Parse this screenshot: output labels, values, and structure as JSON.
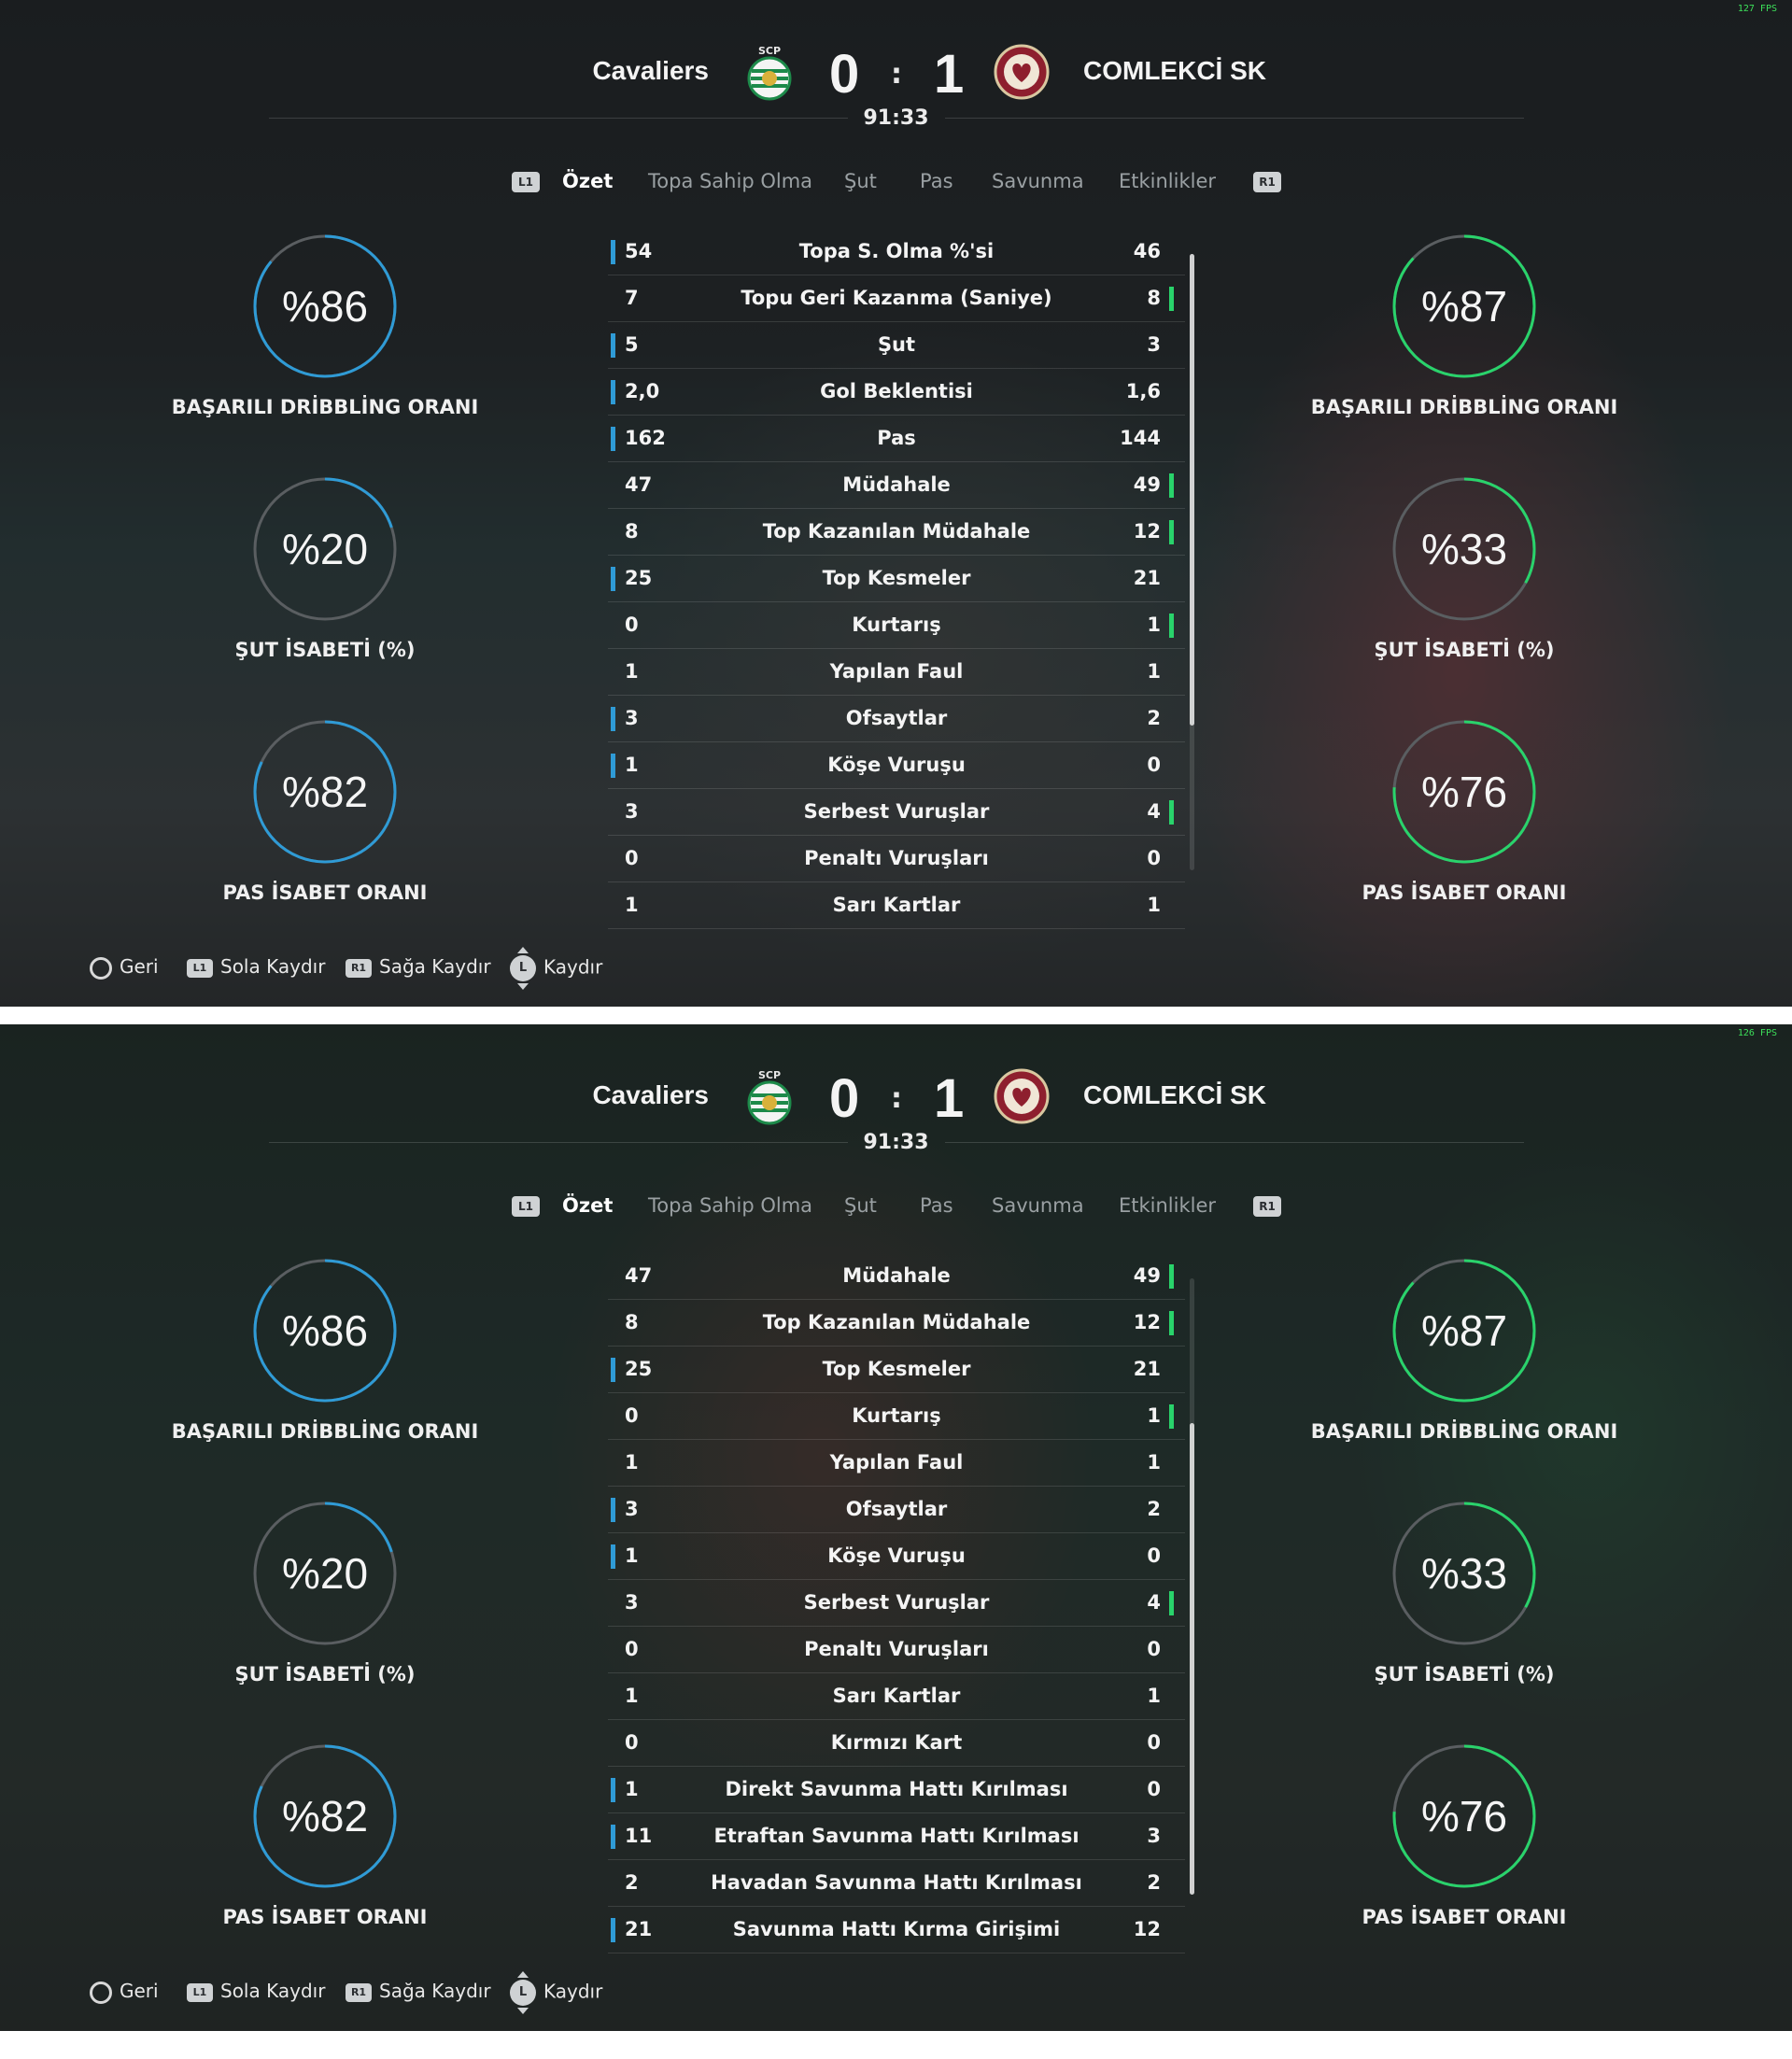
{
  "screens": [
    {
      "fps": "127 FPS",
      "home_team": "Cavaliers",
      "away_team": "COMLEKCİ SK",
      "home_score": "0",
      "away_score": "1",
      "separator": ":",
      "clock": "91:33",
      "tabs": [
        "Özet",
        "Topa Sahip Olma",
        "Şut",
        "Pas",
        "Savunma",
        "Etkinlikler"
      ],
      "active_tab": 0,
      "tab_left_button": "L1",
      "tab_right_button": "R1",
      "home_rings": [
        {
          "value": "%86",
          "label": "BAŞARILI DRİBBLİNG ORANI",
          "fraction": 0.86
        },
        {
          "value": "%20",
          "label": "ŞUT İSABETİ (%)",
          "fraction": 0.2
        },
        {
          "value": "%82",
          "label": "PAS İSABET ORANI",
          "fraction": 0.82
        }
      ],
      "away_rings": [
        {
          "value": "%87",
          "label": "BAŞARILI DRİBBLİNG ORANI",
          "fraction": 0.87
        },
        {
          "value": "%33",
          "label": "ŞUT İSABETİ (%)",
          "fraction": 0.33
        },
        {
          "value": "%76",
          "label": "PAS İSABET ORANI",
          "fraction": 0.76
        }
      ],
      "stats": [
        {
          "home": "54",
          "label": "Topa S. Olma %'si",
          "away": "46",
          "leader": "home"
        },
        {
          "home": "7",
          "label": "Topu Geri Kazanma (Saniye)",
          "away": "8",
          "leader": "away"
        },
        {
          "home": "5",
          "label": "Şut",
          "away": "3",
          "leader": "home"
        },
        {
          "home": "2,0",
          "label": "Gol Beklentisi",
          "away": "1,6",
          "leader": "home"
        },
        {
          "home": "162",
          "label": "Pas",
          "away": "144",
          "leader": "home"
        },
        {
          "home": "47",
          "label": "Müdahale",
          "away": "49",
          "leader": "away"
        },
        {
          "home": "8",
          "label": "Top Kazanılan Müdahale",
          "away": "12",
          "leader": "away"
        },
        {
          "home": "25",
          "label": "Top Kesmeler",
          "away": "21",
          "leader": "home"
        },
        {
          "home": "0",
          "label": "Kurtarış",
          "away": "1",
          "leader": "away"
        },
        {
          "home": "1",
          "label": "Yapılan Faul",
          "away": "1",
          "leader": "none"
        },
        {
          "home": "3",
          "label": "Ofsaytlar",
          "away": "2",
          "leader": "home"
        },
        {
          "home": "1",
          "label": "Köşe Vuruşu",
          "away": "0",
          "leader": "home"
        },
        {
          "home": "3",
          "label": "Serbest Vuruşlar",
          "away": "4",
          "leader": "away"
        },
        {
          "home": "0",
          "label": "Penaltı Vuruşları",
          "away": "0",
          "leader": "none"
        },
        {
          "home": "1",
          "label": "Sarı Kartlar",
          "away": "1",
          "leader": "none"
        }
      ],
      "scroll_position": 0.0,
      "footer": [
        {
          "icon": "circle-button-icon",
          "glyph": "",
          "label": "Geri"
        },
        {
          "icon": "l1-button-icon",
          "glyph": "L1",
          "label": "Sola Kaydır"
        },
        {
          "icon": "r1-button-icon",
          "glyph": "R1",
          "label": "Sağa Kaydır"
        },
        {
          "icon": "left-stick-icon",
          "glyph": "L",
          "label": "Kaydır"
        }
      ]
    },
    {
      "fps": "126 FPS",
      "home_team": "Cavaliers",
      "away_team": "COMLEKCİ SK",
      "home_score": "0",
      "away_score": "1",
      "separator": ":",
      "clock": "91:33",
      "tabs": [
        "Özet",
        "Topa Sahip Olma",
        "Şut",
        "Pas",
        "Savunma",
        "Etkinlikler"
      ],
      "active_tab": 0,
      "tab_left_button": "L1",
      "tab_right_button": "R1",
      "home_rings": [
        {
          "value": "%86",
          "label": "BAŞARILI DRİBBLİNG ORANI",
          "fraction": 0.86
        },
        {
          "value": "%20",
          "label": "ŞUT İSABETİ (%)",
          "fraction": 0.2
        },
        {
          "value": "%82",
          "label": "PAS İSABET ORANI",
          "fraction": 0.82
        }
      ],
      "away_rings": [
        {
          "value": "%87",
          "label": "BAŞARILI DRİBBLİNG ORANI",
          "fraction": 0.87
        },
        {
          "value": "%33",
          "label": "ŞUT İSABETİ (%)",
          "fraction": 0.33
        },
        {
          "value": "%76",
          "label": "PAS İSABET ORANI",
          "fraction": 0.76
        }
      ],
      "stats": [
        {
          "home": "47",
          "label": "Müdahale",
          "away": "49",
          "leader": "away"
        },
        {
          "home": "8",
          "label": "Top Kazanılan Müdahale",
          "away": "12",
          "leader": "away"
        },
        {
          "home": "25",
          "label": "Top Kesmeler",
          "away": "21",
          "leader": "home"
        },
        {
          "home": "0",
          "label": "Kurtarış",
          "away": "1",
          "leader": "away"
        },
        {
          "home": "1",
          "label": "Yapılan Faul",
          "away": "1",
          "leader": "none"
        },
        {
          "home": "3",
          "label": "Ofsaytlar",
          "away": "2",
          "leader": "home"
        },
        {
          "home": "1",
          "label": "Köşe Vuruşu",
          "away": "0",
          "leader": "home"
        },
        {
          "home": "3",
          "label": "Serbest Vuruşlar",
          "away": "4",
          "leader": "away"
        },
        {
          "home": "0",
          "label": "Penaltı Vuruşları",
          "away": "0",
          "leader": "none"
        },
        {
          "home": "1",
          "label": "Sarı Kartlar",
          "away": "1",
          "leader": "none"
        },
        {
          "home": "0",
          "label": "Kırmızı Kart",
          "away": "0",
          "leader": "none"
        },
        {
          "home": "1",
          "label": "Direkt Savunma Hattı Kırılması",
          "away": "0",
          "leader": "home"
        },
        {
          "home": "11",
          "label": "Etraftan Savunma Hattı Kırılması",
          "away": "3",
          "leader": "home"
        },
        {
          "home": "2",
          "label": "Havadan Savunma Hattı Kırılması",
          "away": "2",
          "leader": "none"
        },
        {
          "home": "21",
          "label": "Savunma Hattı Kırma Girişimi",
          "away": "12",
          "leader": "home"
        }
      ],
      "scroll_position": 1.0,
      "footer": [
        {
          "icon": "circle-button-icon",
          "glyph": "",
          "label": "Geri"
        },
        {
          "icon": "l1-button-icon",
          "glyph": "L1",
          "label": "Sola Kaydır"
        },
        {
          "icon": "r1-button-icon",
          "glyph": "R1",
          "label": "Sağa Kaydır"
        },
        {
          "icon": "left-stick-icon",
          "glyph": "L",
          "label": "Kaydır"
        }
      ]
    }
  ],
  "colors": {
    "home_accent": "#2f9bd6",
    "away_accent": "#29d36b",
    "ring_track": "#5a5e61",
    "home_crest_green": "#1d8a4a",
    "away_crest_maroon": "#8e1f2e"
  }
}
